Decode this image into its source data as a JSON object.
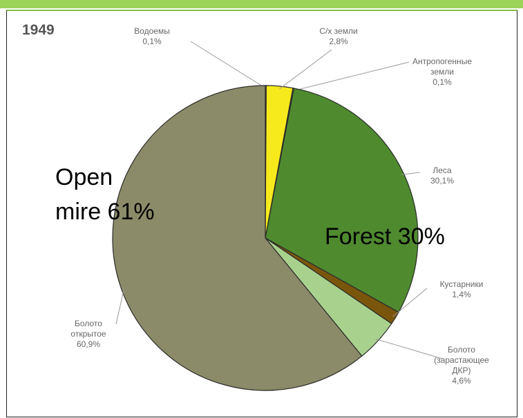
{
  "chart_data": {
    "type": "pie",
    "title": "1949",
    "categories": [
      "Водоемы",
      "С/х земли",
      "Антропогенные\nземли",
      "Леса",
      "Кустарники",
      "Болото\n(зарастающее\nДКР)",
      "Болото\nоткрытое"
    ],
    "values": [
      0.1,
      2.8,
      0.1,
      30.1,
      1.4,
      4.6,
      60.9
    ],
    "value_labels": [
      "0,1%",
      "2,8%",
      "0,1%",
      "30,1%",
      "1,4%",
      "4,6%",
      "60,9%"
    ],
    "colors": [
      "#f2f2f2",
      "#f7ea1c",
      "#c8b46a",
      "#4f8a2f",
      "#7a560c",
      "#a9d18e",
      "#8b8b69"
    ],
    "annotations": [
      "Open\nmire 61%",
      "Forest 30%"
    ]
  }
}
